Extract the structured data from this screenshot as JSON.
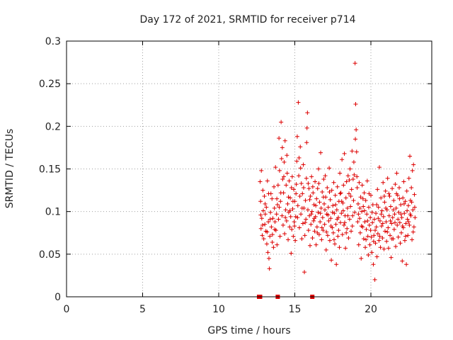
{
  "chart_data": {
    "type": "scatter",
    "title": "Day 172 of 2021, SRMTID for receiver p714",
    "xlabel": "GPS time / hours",
    "ylabel": "SRMTID / TECUs",
    "xlim": [
      0,
      24
    ],
    "ylim": [
      0,
      0.3
    ],
    "grid": true,
    "x_ticks": [
      0,
      5,
      10,
      15,
      20
    ],
    "x_tick_labels": [
      "0",
      "5",
      "10",
      "15",
      "20"
    ],
    "y_ticks": [
      0,
      0.05,
      0.1,
      0.15,
      0.2,
      0.25,
      0.3
    ],
    "y_tick_labels": [
      "0",
      "0.05",
      "0.1",
      "0.15",
      "0.2",
      "0.25",
      "0.3"
    ],
    "marker": "+",
    "color": "#dd0000",
    "data_range_hours": [
      12.7,
      22.9
    ],
    "points": [
      [
        12.72,
        0.135
      ],
      [
        12.75,
        0.112
      ],
      [
        12.78,
        0.08
      ],
      [
        12.8,
        0.148
      ],
      [
        12.83,
        0.092
      ],
      [
        12.86,
        0.072
      ],
      [
        12.9,
        0.125
      ],
      [
        12.93,
        0.101
      ],
      [
        12.96,
        0.068
      ],
      [
        13.0,
        0.118
      ],
      [
        13.03,
        0.085
      ],
      [
        13.06,
        0.097
      ],
      [
        13.1,
        0.077
      ],
      [
        13.13,
        0.105
      ],
      [
        13.16,
        0.062
      ],
      [
        13.2,
        0.136
      ],
      [
        13.23,
        0.052
      ],
      [
        13.26,
        0.088
      ],
      [
        13.3,
        0.045
      ],
      [
        13.33,
        0.033
      ],
      [
        13.36,
        0.071
      ],
      [
        13.4,
        0.099
      ],
      [
        13.43,
        0.121
      ],
      [
        13.46,
        0.082
      ],
      [
        13.5,
        0.115
      ],
      [
        13.53,
        0.073
      ],
      [
        13.56,
        0.092
      ],
      [
        13.6,
        0.058
      ],
      [
        13.63,
        0.129
      ],
      [
        13.66,
        0.104
      ],
      [
        13.7,
        0.088
      ],
      [
        13.73,
        0.152
      ],
      [
        13.76,
        0.078
      ],
      [
        13.8,
        0.097
      ],
      [
        13.83,
        0.061
      ],
      [
        13.86,
        0.108
      ],
      [
        13.9,
        0.131
      ],
      [
        13.93,
        0.091
      ],
      [
        13.96,
        0.186
      ],
      [
        14.0,
        0.148
      ],
      [
        14.03,
        0.071
      ],
      [
        14.06,
        0.112
      ],
      [
        14.1,
        0.205
      ],
      [
        14.13,
        0.162
      ],
      [
        14.16,
        0.095
      ],
      [
        14.2,
        0.138
      ],
      [
        14.23,
        0.084
      ],
      [
        14.26,
        0.122
      ],
      [
        14.3,
        0.158
      ],
      [
        14.33,
        0.074
      ],
      [
        14.36,
        0.183
      ],
      [
        14.4,
        0.102
      ],
      [
        14.43,
        0.131
      ],
      [
        14.46,
        0.089
      ],
      [
        14.5,
        0.145
      ],
      [
        14.53,
        0.109
      ],
      [
        14.56,
        0.067
      ],
      [
        14.6,
        0.099
      ],
      [
        14.63,
        0.136
      ],
      [
        14.66,
        0.082
      ],
      [
        14.7,
        0.116
      ],
      [
        14.73,
        0.094
      ],
      [
        14.76,
        0.051
      ],
      [
        14.8,
        0.079
      ],
      [
        14.83,
        0.141
      ],
      [
        14.86,
        0.103
      ],
      [
        14.9,
        0.071
      ],
      [
        14.93,
        0.126
      ],
      [
        14.96,
        0.088
      ],
      [
        15.0,
        0.112
      ],
      [
        15.03,
        0.066
      ],
      [
        15.06,
        0.094
      ],
      [
        15.1,
        0.132
      ],
      [
        15.13,
        0.159
      ],
      [
        15.16,
        0.188
      ],
      [
        15.2,
        0.107
      ],
      [
        15.23,
        0.228
      ],
      [
        15.26,
        0.142
      ],
      [
        15.3,
        0.081
      ],
      [
        15.33,
        0.118
      ],
      [
        15.36,
        0.176
      ],
      [
        15.4,
        0.097
      ],
      [
        15.43,
        0.133
      ],
      [
        15.46,
        0.068
      ],
      [
        15.5,
        0.121
      ],
      [
        15.53,
        0.086
      ],
      [
        15.56,
        0.155
      ],
      [
        15.6,
        0.104
      ],
      [
        15.63,
        0.029
      ],
      [
        15.66,
        0.072
      ],
      [
        15.7,
        0.113
      ],
      [
        15.73,
        0.091
      ],
      [
        15.76,
        0.139
      ],
      [
        15.8,
        0.198
      ],
      [
        15.83,
        0.216
      ],
      [
        15.86,
        0.102
      ],
      [
        15.9,
        0.078
      ],
      [
        15.93,
        0.127
      ],
      [
        15.96,
        0.095
      ],
      [
        16.0,
        0.06
      ],
      [
        16.03,
        0.118
      ],
      [
        16.06,
        0.085
      ],
      [
        16.1,
        0.141
      ],
      [
        16.13,
        0.1
      ],
      [
        16.16,
        0.069
      ],
      [
        16.2,
        0.122
      ],
      [
        16.23,
        0.089
      ],
      [
        16.26,
        0.108
      ],
      [
        16.3,
        0.077
      ],
      [
        16.33,
        0.135
      ],
      [
        16.36,
        0.094
      ],
      [
        16.4,
        0.061
      ],
      [
        16.43,
        0.115
      ],
      [
        16.46,
        0.082
      ],
      [
        16.5,
        0.127
      ],
      [
        16.53,
        0.099
      ],
      [
        16.56,
        0.15
      ],
      [
        16.6,
        0.073
      ],
      [
        16.63,
        0.111
      ],
      [
        16.66,
        0.088
      ],
      [
        16.7,
        0.169
      ],
      [
        16.73,
        0.104
      ],
      [
        16.76,
        0.067
      ],
      [
        16.8,
        0.123
      ],
      [
        16.83,
        0.093
      ],
      [
        16.86,
        0.078
      ],
      [
        16.9,
        0.138
      ],
      [
        16.93,
        0.109
      ],
      [
        16.96,
        0.085
      ],
      [
        17.0,
        0.142
      ],
      [
        17.03,
        0.117
      ],
      [
        17.06,
        0.055
      ],
      [
        17.1,
        0.097
      ],
      [
        17.13,
        0.128
      ],
      [
        17.16,
        0.072
      ],
      [
        17.2,
        0.105
      ],
      [
        17.23,
        0.089
      ],
      [
        17.26,
        0.151
      ],
      [
        17.3,
        0.066
      ],
      [
        17.33,
        0.114
      ],
      [
        17.36,
        0.092
      ],
      [
        17.4,
        0.043
      ],
      [
        17.43,
        0.125
      ],
      [
        17.46,
        0.081
      ],
      [
        17.5,
        0.107
      ],
      [
        17.53,
        0.075
      ],
      [
        17.56,
        0.134
      ],
      [
        17.6,
        0.098
      ],
      [
        17.63,
        0.062
      ],
      [
        17.66,
        0.119
      ],
      [
        17.7,
        0.085
      ],
      [
        17.73,
        0.038
      ],
      [
        17.76,
        0.102
      ],
      [
        17.8,
        0.129
      ],
      [
        17.83,
        0.071
      ],
      [
        17.86,
        0.093
      ],
      [
        17.9,
        0.112
      ],
      [
        17.93,
        0.058
      ],
      [
        17.96,
        0.145
      ],
      [
        18.0,
        0.087
      ],
      [
        18.03,
        0.122
      ],
      [
        18.06,
        0.098
      ],
      [
        18.1,
        0.161
      ],
      [
        18.13,
        0.073
      ],
      [
        18.16,
        0.11
      ],
      [
        18.2,
        0.131
      ],
      [
        18.23,
        0.084
      ],
      [
        18.26,
        0.168
      ],
      [
        18.3,
        0.095
      ],
      [
        18.33,
        0.057
      ],
      [
        18.36,
        0.116
      ],
      [
        18.4,
        0.135
      ],
      [
        18.43,
        0.08
      ],
      [
        18.46,
        0.104
      ],
      [
        18.5,
        0.142
      ],
      [
        18.53,
        0.069
      ],
      [
        18.56,
        0.121
      ],
      [
        18.6,
        0.091
      ],
      [
        18.63,
        0.15
      ],
      [
        18.66,
        0.106
      ],
      [
        18.7,
        0.077
      ],
      [
        18.73,
        0.126
      ],
      [
        18.76,
        0.171
      ],
      [
        18.8,
        0.095
      ],
      [
        18.83,
        0.138
      ],
      [
        18.86,
        0.113
      ],
      [
        18.9,
        0.143
      ],
      [
        18.93,
        0.099
      ],
      [
        18.96,
        0.274
      ],
      [
        19.0,
        0.226
      ],
      [
        19.03,
        0.196
      ],
      [
        19.06,
        0.17
      ],
      [
        19.1,
        0.128
      ],
      [
        19.13,
        0.088
      ],
      [
        19.16,
        0.109
      ],
      [
        19.2,
        0.061
      ],
      [
        19.23,
        0.134
      ],
      [
        19.26,
        0.092
      ],
      [
        19.3,
        0.075
      ],
      [
        19.33,
        0.117
      ],
      [
        19.36,
        0.045
      ],
      [
        19.4,
        0.1
      ],
      [
        19.43,
        0.131
      ],
      [
        19.46,
        0.082
      ],
      [
        19.5,
        0.106
      ],
      [
        19.53,
        0.068
      ],
      [
        19.56,
        0.122
      ],
      [
        19.6,
        0.088
      ],
      [
        19.63,
        0.058
      ],
      [
        19.66,
        0.113
      ],
      [
        19.7,
        0.079
      ],
      [
        19.73,
        0.097
      ],
      [
        19.76,
        0.136
      ],
      [
        19.8,
        0.071
      ],
      [
        19.83,
        0.049
      ],
      [
        19.86,
        0.105
      ],
      [
        19.9,
        0.084
      ],
      [
        19.93,
        0.061
      ],
      [
        19.96,
        0.093
      ],
      [
        20.0,
        0.119
      ],
      [
        20.03,
        0.07
      ],
      [
        20.06,
        0.052
      ],
      [
        20.1,
        0.087
      ],
      [
        20.13,
        0.108
      ],
      [
        20.16,
        0.038
      ],
      [
        20.2,
        0.072
      ],
      [
        20.23,
        0.091
      ],
      [
        20.26,
        0.02
      ],
      [
        20.3,
        0.063
      ],
      [
        20.33,
        0.098
      ],
      [
        20.36,
        0.082
      ],
      [
        20.4,
        0.047
      ],
      [
        20.43,
        0.126
      ],
      [
        20.46,
        0.074
      ],
      [
        20.5,
        0.105
      ],
      [
        20.53,
        0.066
      ],
      [
        20.56,
        0.152
      ],
      [
        20.6,
        0.089
      ],
      [
        20.63,
        0.058
      ],
      [
        20.66,
        0.116
      ],
      [
        20.7,
        0.083
      ],
      [
        20.73,
        0.101
      ],
      [
        20.76,
        0.069
      ],
      [
        20.8,
        0.134
      ],
      [
        20.83,
        0.094
      ],
      [
        20.86,
        0.056
      ],
      [
        20.9,
        0.111
      ],
      [
        20.93,
        0.077
      ],
      [
        20.96,
        0.124
      ],
      [
        21.0,
        0.088
      ],
      [
        21.03,
        0.065
      ],
      [
        21.06,
        0.102
      ],
      [
        21.1,
        0.139
      ],
      [
        21.13,
        0.081
      ],
      [
        21.16,
        0.057
      ],
      [
        21.2,
        0.095
      ],
      [
        21.23,
        0.118
      ],
      [
        21.26,
        0.072
      ],
      [
        21.3,
        0.106
      ],
      [
        21.33,
        0.046
      ],
      [
        21.36,
        0.086
      ],
      [
        21.4,
        0.127
      ],
      [
        21.43,
        0.093
      ],
      [
        21.46,
        0.068
      ],
      [
        21.5,
        0.113
      ],
      [
        21.53,
        0.079
      ],
      [
        21.56,
        0.097
      ],
      [
        21.6,
        0.132
      ],
      [
        21.63,
        0.059
      ],
      [
        21.66,
        0.104
      ],
      [
        21.7,
        0.145
      ],
      [
        21.73,
        0.084
      ],
      [
        21.76,
        0.119
      ],
      [
        21.8,
        0.07
      ],
      [
        21.83,
        0.099
      ],
      [
        21.86,
        0.128
      ],
      [
        21.9,
        0.087
      ],
      [
        21.93,
        0.063
      ],
      [
        21.96,
        0.108
      ],
      [
        22.0,
        0.075
      ],
      [
        22.03,
        0.093
      ],
      [
        22.06,
        0.042
      ],
      [
        22.1,
        0.116
      ],
      [
        22.13,
        0.081
      ],
      [
        22.16,
        0.135
      ],
      [
        22.2,
        0.098
      ],
      [
        22.23,
        0.066
      ],
      [
        22.26,
        0.112
      ],
      [
        22.3,
        0.086
      ],
      [
        22.33,
        0.038
      ],
      [
        22.36,
        0.124
      ],
      [
        22.4,
        0.091
      ],
      [
        22.43,
        0.072
      ],
      [
        22.46,
        0.107
      ],
      [
        22.5,
        0.139
      ],
      [
        22.53,
        0.084
      ],
      [
        22.56,
        0.165
      ],
      [
        22.6,
        0.113
      ],
      [
        22.63,
        0.095
      ],
      [
        22.66,
        0.128
      ],
      [
        22.7,
        0.067
      ],
      [
        22.73,
        0.148
      ],
      [
        22.76,
        0.102
      ],
      [
        22.8,
        0.155
      ],
      [
        22.83,
        0.082
      ],
      [
        22.86,
        0.12
      ],
      [
        22.9,
        0.093
      ],
      [
        12.76,
        0.096
      ],
      [
        12.88,
        0.084
      ],
      [
        13.05,
        0.109
      ],
      [
        13.18,
        0.076
      ],
      [
        13.28,
        0.121
      ],
      [
        13.38,
        0.091
      ],
      [
        13.52,
        0.064
      ],
      [
        13.68,
        0.079
      ],
      [
        13.82,
        0.115
      ],
      [
        13.98,
        0.105
      ],
      [
        14.08,
        0.122
      ],
      [
        14.18,
        0.175
      ],
      [
        14.28,
        0.141
      ],
      [
        14.38,
        0.093
      ],
      [
        14.48,
        0.166
      ],
      [
        14.58,
        0.117
      ],
      [
        14.68,
        0.101
      ],
      [
        14.78,
        0.128
      ],
      [
        14.88,
        0.112
      ],
      [
        14.98,
        0.083
      ],
      [
        15.08,
        0.121
      ],
      [
        15.18,
        0.093
      ],
      [
        15.28,
        0.163
      ],
      [
        15.38,
        0.151
      ],
      [
        15.48,
        0.104
      ],
      [
        15.58,
        0.128
      ],
      [
        15.68,
        0.087
      ],
      [
        15.78,
        0.181
      ],
      [
        15.88,
        0.133
      ],
      [
        15.98,
        0.114
      ],
      [
        16.08,
        0.097
      ],
      [
        16.18,
        0.129
      ],
      [
        16.28,
        0.092
      ],
      [
        16.38,
        0.107
      ],
      [
        16.48,
        0.075
      ],
      [
        16.58,
        0.133
      ],
      [
        16.68,
        0.098
      ],
      [
        16.78,
        0.081
      ],
      [
        16.88,
        0.117
      ],
      [
        16.98,
        0.102
      ],
      [
        17.08,
        0.076
      ],
      [
        17.18,
        0.096
      ],
      [
        17.28,
        0.123
      ],
      [
        17.38,
        0.083
      ],
      [
        17.48,
        0.099
      ],
      [
        17.58,
        0.067
      ],
      [
        17.68,
        0.108
      ],
      [
        17.78,
        0.091
      ],
      [
        17.88,
        0.078
      ],
      [
        17.98,
        0.121
      ],
      [
        18.08,
        0.112
      ],
      [
        18.18,
        0.101
      ],
      [
        18.28,
        0.087
      ],
      [
        18.38,
        0.075
      ],
      [
        18.48,
        0.095
      ],
      [
        18.58,
        0.137
      ],
      [
        18.68,
        0.118
      ],
      [
        18.78,
        0.083
      ],
      [
        18.88,
        0.158
      ],
      [
        18.98,
        0.185
      ],
      [
        19.08,
        0.141
      ],
      [
        19.18,
        0.097
      ],
      [
        19.28,
        0.104
      ],
      [
        19.38,
        0.083
      ],
      [
        19.48,
        0.115
      ],
      [
        19.58,
        0.101
      ],
      [
        19.68,
        0.067
      ],
      [
        19.78,
        0.089
      ],
      [
        19.88,
        0.121
      ],
      [
        19.98,
        0.078
      ],
      [
        20.08,
        0.099
      ],
      [
        20.18,
        0.065
      ],
      [
        20.28,
        0.078
      ],
      [
        20.38,
        0.108
      ],
      [
        20.48,
        0.092
      ],
      [
        20.58,
        0.071
      ],
      [
        20.68,
        0.097
      ],
      [
        20.78,
        0.086
      ],
      [
        20.88,
        0.118
      ],
      [
        20.98,
        0.104
      ],
      [
        21.08,
        0.076
      ],
      [
        21.18,
        0.121
      ],
      [
        21.28,
        0.089
      ],
      [
        21.38,
        0.068
      ],
      [
        21.48,
        0.102
      ],
      [
        21.58,
        0.087
      ],
      [
        21.68,
        0.121
      ],
      [
        21.78,
        0.091
      ],
      [
        21.88,
        0.115
      ],
      [
        21.98,
        0.097
      ],
      [
        22.08,
        0.083
      ],
      [
        22.18,
        0.109
      ],
      [
        22.28,
        0.071
      ],
      [
        22.38,
        0.101
      ],
      [
        22.48,
        0.088
      ],
      [
        22.58,
        0.097
      ],
      [
        22.68,
        0.111
      ],
      [
        22.78,
        0.076
      ],
      [
        22.88,
        0.105
      ]
    ],
    "zero_points": [
      [
        12.65,
        0.0
      ],
      [
        12.72,
        0.0
      ],
      [
        13.88,
        0.0
      ],
      [
        16.15,
        0.0
      ]
    ]
  }
}
